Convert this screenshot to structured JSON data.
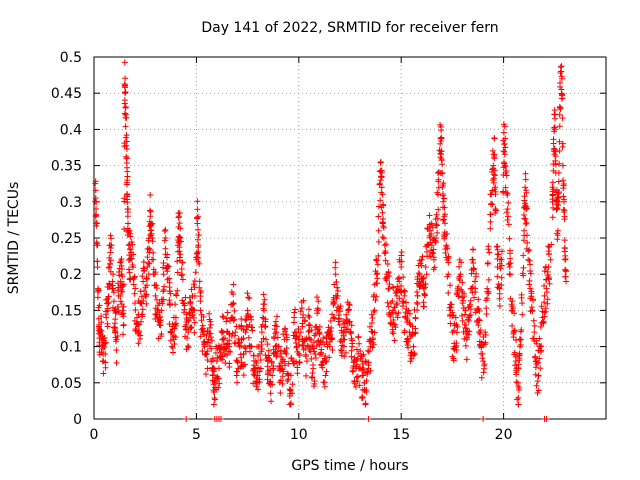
{
  "chart_data": {
    "type": "scatter",
    "title": "Day 141 of 2022, SRMTID for receiver fern",
    "xlabel": "GPS time / hours",
    "ylabel": "SRMTID / TECUs",
    "xlim": [
      0,
      25
    ],
    "ylim": [
      0,
      0.5
    ],
    "xticks": [
      "0",
      "5",
      "10",
      "15",
      "20"
    ],
    "yticks": [
      "0",
      "0.05",
      "0.1",
      "0.15",
      "0.2",
      "0.25",
      "0.3",
      "0.35",
      "0.4",
      "0.45",
      "0.5"
    ],
    "grid": true,
    "marker": "+",
    "color": "#ff0000",
    "series": [
      {
        "points": [
          [
            0.05,
            0.3
          ],
          [
            0.1,
            0.29
          ],
          [
            0.15,
            0.24
          ],
          [
            0.2,
            0.18
          ],
          [
            0.25,
            0.13
          ],
          [
            0.3,
            0.12
          ],
          [
            0.4,
            0.1
          ],
          [
            0.45,
            0.08
          ],
          [
            0.55,
            0.09
          ],
          [
            0.6,
            0.14
          ],
          [
            0.7,
            0.16
          ],
          [
            0.75,
            0.21
          ],
          [
            0.8,
            0.23
          ],
          [
            0.9,
            0.19
          ],
          [
            1.0,
            0.15
          ],
          [
            1.05,
            0.12
          ],
          [
            1.1,
            0.11
          ],
          [
            1.2,
            0.17
          ],
          [
            1.3,
            0.19
          ],
          [
            1.35,
            0.2
          ],
          [
            1.4,
            0.15
          ],
          [
            1.45,
            0.13
          ],
          [
            1.5,
            0.46
          ],
          [
            1.52,
            0.45
          ],
          [
            1.55,
            0.42
          ],
          [
            1.6,
            0.36
          ],
          [
            1.62,
            0.33
          ],
          [
            1.65,
            0.28
          ],
          [
            1.7,
            0.24
          ],
          [
            1.75,
            0.22
          ],
          [
            1.8,
            0.23
          ],
          [
            1.9,
            0.21
          ],
          [
            2.0,
            0.16
          ],
          [
            2.1,
            0.14
          ],
          [
            2.2,
            0.13
          ],
          [
            2.3,
            0.16
          ],
          [
            2.4,
            0.19
          ],
          [
            2.5,
            0.17
          ],
          [
            2.6,
            0.21
          ],
          [
            2.7,
            0.23
          ],
          [
            2.75,
            0.28
          ],
          [
            2.8,
            0.27
          ],
          [
            2.9,
            0.2
          ],
          [
            3.0,
            0.17
          ],
          [
            3.1,
            0.14
          ],
          [
            3.2,
            0.13
          ],
          [
            3.3,
            0.15
          ],
          [
            3.4,
            0.2
          ],
          [
            3.5,
            0.25
          ],
          [
            3.6,
            0.21
          ],
          [
            3.7,
            0.16
          ],
          [
            3.8,
            0.12
          ],
          [
            3.9,
            0.11
          ],
          [
            4.0,
            0.14
          ],
          [
            4.1,
            0.24
          ],
          [
            4.15,
            0.28
          ],
          [
            4.2,
            0.25
          ],
          [
            4.3,
            0.2
          ],
          [
            4.4,
            0.16
          ],
          [
            4.5,
            0.13
          ],
          [
            4.6,
            0.12
          ],
          [
            4.7,
            0.14
          ],
          [
            4.8,
            0.17
          ],
          [
            4.9,
            0.15
          ],
          [
            5.0,
            0.22
          ],
          [
            5.05,
            0.27
          ],
          [
            5.1,
            0.24
          ],
          [
            5.2,
            0.15
          ],
          [
            5.3,
            0.12
          ],
          [
            5.4,
            0.1
          ],
          [
            5.5,
            0.09
          ],
          [
            5.6,
            0.11
          ],
          [
            5.7,
            0.13
          ],
          [
            5.8,
            0.06
          ],
          [
            5.85,
            0.04
          ],
          [
            5.9,
            0.05
          ],
          [
            6.0,
            0.08
          ],
          [
            6.1,
            0.07
          ],
          [
            6.2,
            0.1
          ],
          [
            6.3,
            0.12
          ],
          [
            6.4,
            0.09
          ],
          [
            6.5,
            0.12
          ],
          [
            6.6,
            0.1
          ],
          [
            6.7,
            0.14
          ],
          [
            6.8,
            0.16
          ],
          [
            6.9,
            0.12
          ],
          [
            7.0,
            0.08
          ],
          [
            7.1,
            0.1
          ],
          [
            7.2,
            0.11
          ],
          [
            7.3,
            0.09
          ],
          [
            7.4,
            0.12
          ],
          [
            7.5,
            0.15
          ],
          [
            7.6,
            0.13
          ],
          [
            7.7,
            0.1
          ],
          [
            7.8,
            0.07
          ],
          [
            7.9,
            0.08
          ],
          [
            8.0,
            0.06
          ],
          [
            8.1,
            0.09
          ],
          [
            8.2,
            0.12
          ],
          [
            8.3,
            0.15
          ],
          [
            8.4,
            0.11
          ],
          [
            8.5,
            0.08
          ],
          [
            8.6,
            0.05
          ],
          [
            8.7,
            0.06
          ],
          [
            8.8,
            0.09
          ],
          [
            8.9,
            0.12
          ],
          [
            9.0,
            0.1
          ],
          [
            9.1,
            0.07
          ],
          [
            9.2,
            0.08
          ],
          [
            9.3,
            0.11
          ],
          [
            9.4,
            0.09
          ],
          [
            9.5,
            0.06
          ],
          [
            9.6,
            0.04
          ],
          [
            9.7,
            0.08
          ],
          [
            9.8,
            0.12
          ],
          [
            9.9,
            0.1
          ],
          [
            10.0,
            0.09
          ],
          [
            10.1,
            0.12
          ],
          [
            10.2,
            0.14
          ],
          [
            10.3,
            0.11
          ],
          [
            10.4,
            0.08
          ],
          [
            10.5,
            0.13
          ],
          [
            10.6,
            0.1
          ],
          [
            10.7,
            0.07
          ],
          [
            10.8,
            0.09
          ],
          [
            10.9,
            0.15
          ],
          [
            11.0,
            0.12
          ],
          [
            11.1,
            0.09
          ],
          [
            11.2,
            0.08
          ],
          [
            11.3,
            0.06
          ],
          [
            11.4,
            0.1
          ],
          [
            11.5,
            0.12
          ],
          [
            11.6,
            0.11
          ],
          [
            11.7,
            0.14
          ],
          [
            11.8,
            0.2
          ],
          [
            11.9,
            0.17
          ],
          [
            12.0,
            0.13
          ],
          [
            12.1,
            0.11
          ],
          [
            12.2,
            0.1
          ],
          [
            12.3,
            0.12
          ],
          [
            12.4,
            0.15
          ],
          [
            12.5,
            0.12
          ],
          [
            12.6,
            0.1
          ],
          [
            12.7,
            0.08
          ],
          [
            12.8,
            0.07
          ],
          [
            12.9,
            0.09
          ],
          [
            13.0,
            0.07
          ],
          [
            13.1,
            0.06
          ],
          [
            13.2,
            0.05
          ],
          [
            13.3,
            0.04
          ],
          [
            13.4,
            0.07
          ],
          [
            13.5,
            0.1
          ],
          [
            13.6,
            0.12
          ],
          [
            13.7,
            0.15
          ],
          [
            13.8,
            0.2
          ],
          [
            13.9,
            0.26
          ],
          [
            14.0,
            0.33
          ],
          [
            14.05,
            0.32
          ],
          [
            14.1,
            0.27
          ],
          [
            14.2,
            0.24
          ],
          [
            14.3,
            0.2
          ],
          [
            14.4,
            0.18
          ],
          [
            14.5,
            0.16
          ],
          [
            14.6,
            0.15
          ],
          [
            14.7,
            0.13
          ],
          [
            14.8,
            0.16
          ],
          [
            14.9,
            0.19
          ],
          [
            15.0,
            0.21
          ],
          [
            15.1,
            0.16
          ],
          [
            15.2,
            0.14
          ],
          [
            15.3,
            0.11
          ],
          [
            15.4,
            0.12
          ],
          [
            15.5,
            0.09
          ],
          [
            15.6,
            0.1
          ],
          [
            15.7,
            0.14
          ],
          [
            15.8,
            0.17
          ],
          [
            15.9,
            0.2
          ],
          [
            16.0,
            0.22
          ],
          [
            16.1,
            0.18
          ],
          [
            16.2,
            0.21
          ],
          [
            16.3,
            0.24
          ],
          [
            16.4,
            0.26
          ],
          [
            16.5,
            0.24
          ],
          [
            16.6,
            0.22
          ],
          [
            16.7,
            0.25
          ],
          [
            16.8,
            0.31
          ],
          [
            16.9,
            0.38
          ],
          [
            16.95,
            0.37
          ],
          [
            17.0,
            0.34
          ],
          [
            17.05,
            0.3
          ],
          [
            17.1,
            0.28
          ],
          [
            17.2,
            0.24
          ],
          [
            17.3,
            0.2
          ],
          [
            17.4,
            0.15
          ],
          [
            17.5,
            0.12
          ],
          [
            17.6,
            0.1
          ],
          [
            17.7,
            0.13
          ],
          [
            17.8,
            0.17
          ],
          [
            17.9,
            0.2
          ],
          [
            18.0,
            0.16
          ],
          [
            18.1,
            0.13
          ],
          [
            18.2,
            0.11
          ],
          [
            18.3,
            0.14
          ],
          [
            18.4,
            0.18
          ],
          [
            18.5,
            0.22
          ],
          [
            18.6,
            0.19
          ],
          [
            18.7,
            0.15
          ],
          [
            18.8,
            0.12
          ],
          [
            18.9,
            0.09
          ],
          [
            19.0,
            0.08
          ],
          [
            19.1,
            0.12
          ],
          [
            19.2,
            0.18
          ],
          [
            19.3,
            0.23
          ],
          [
            19.4,
            0.31
          ],
          [
            19.5,
            0.35
          ],
          [
            19.55,
            0.36
          ],
          [
            19.6,
            0.29
          ],
          [
            19.7,
            0.21
          ],
          [
            19.8,
            0.18
          ],
          [
            19.9,
            0.22
          ],
          [
            20.0,
            0.37
          ],
          [
            20.05,
            0.38
          ],
          [
            20.1,
            0.34
          ],
          [
            20.2,
            0.29
          ],
          [
            20.3,
            0.21
          ],
          [
            20.4,
            0.15
          ],
          [
            20.5,
            0.12
          ],
          [
            20.6,
            0.08
          ],
          [
            20.7,
            0.05
          ],
          [
            20.75,
            0.04
          ],
          [
            20.8,
            0.1
          ],
          [
            20.9,
            0.16
          ],
          [
            21.0,
            0.26
          ],
          [
            21.05,
            0.32
          ],
          [
            21.1,
            0.29
          ],
          [
            21.2,
            0.22
          ],
          [
            21.3,
            0.18
          ],
          [
            21.4,
            0.15
          ],
          [
            21.5,
            0.12
          ],
          [
            21.6,
            0.08
          ],
          [
            21.7,
            0.06
          ],
          [
            21.8,
            0.1
          ],
          [
            21.9,
            0.14
          ],
          [
            22.0,
            0.17
          ],
          [
            22.1,
            0.18
          ],
          [
            22.2,
            0.21
          ],
          [
            22.3,
            0.22
          ],
          [
            22.4,
            0.31
          ],
          [
            22.45,
            0.37
          ],
          [
            22.5,
            0.4
          ],
          [
            22.55,
            0.34
          ],
          [
            22.6,
            0.29
          ],
          [
            22.65,
            0.26
          ],
          [
            22.7,
            0.34
          ],
          [
            22.75,
            0.43
          ],
          [
            22.8,
            0.48
          ],
          [
            22.85,
            0.47
          ],
          [
            22.9,
            0.35
          ],
          [
            22.95,
            0.3
          ],
          [
            23.0,
            0.22
          ],
          [
            23.05,
            0.19
          ]
        ]
      }
    ],
    "zero_points_x": [
      4.5,
      5.9,
      6.0,
      6.1,
      6.2,
      13.4,
      19.0,
      22.0,
      22.1
    ]
  }
}
